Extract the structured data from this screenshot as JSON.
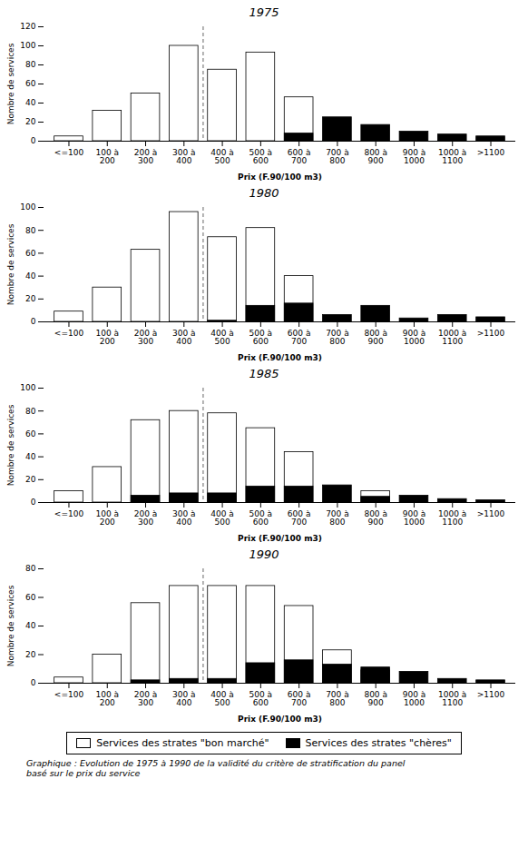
{
  "chart_data": [
    {
      "type": "bar",
      "title": "1975",
      "categories": [
        "<=100",
        "100 à\n200",
        "200 à\n300",
        "300 à\n400",
        "400 à\n500",
        "500 à\n600",
        "600 à\n700",
        "700 à\n800",
        "800 à\n900",
        "900 à\n1000",
        "1000 à\n1100",
        ">1100"
      ],
      "series": [
        {
          "name": "Services des strates \"bon marché\"",
          "color": "#ffffff",
          "values": [
            5,
            32,
            50,
            100,
            75,
            93,
            46,
            0,
            0,
            0,
            0,
            0
          ]
        },
        {
          "name": "Services des strates \"chères\"",
          "color": "#000000",
          "values": [
            0,
            0,
            0,
            0,
            0,
            0,
            8,
            25,
            17,
            10,
            7,
            5
          ]
        }
      ],
      "xlabel": "Prix (F.90/100 m3)",
      "ylabel": "Nombre de services",
      "ylim": [
        0,
        120
      ],
      "yticks": [
        0,
        20,
        40,
        60,
        80,
        100,
        120
      ],
      "dashed_lines": [
        3.5
      ],
      "stacked": false,
      "grid": false
    },
    {
      "type": "bar",
      "title": "1980",
      "categories": [
        "<=100",
        "100 à\n200",
        "200 à\n300",
        "300 à\n400",
        "400 à\n500",
        "500 à\n600",
        "600 à\n700",
        "700 à\n800",
        "800 à\n900",
        "900 à\n1000",
        "1000 à\n1100",
        ">1100"
      ],
      "series": [
        {
          "name": "Services des strates \"bon marché\"",
          "color": "#ffffff",
          "values": [
            9,
            30,
            63,
            96,
            74,
            82,
            40,
            0,
            0,
            0,
            0,
            0
          ]
        },
        {
          "name": "Services des strates \"chères\"",
          "color": "#000000",
          "values": [
            0,
            0,
            0,
            0,
            1,
            14,
            16,
            6,
            14,
            3,
            6,
            4
          ]
        }
      ],
      "xlabel": "Prix (F.90/100 m3)",
      "ylabel": "Nombre de services",
      "ylim": [
        0,
        100
      ],
      "yticks": [
        0,
        20,
        40,
        60,
        80,
        100
      ],
      "dashed_lines": [
        3.5
      ],
      "stacked": false,
      "grid": false
    },
    {
      "type": "bar",
      "title": "1985",
      "categories": [
        "<=100",
        "100 à\n200",
        "200 à\n300",
        "300 à\n400",
        "400 à\n500",
        "500 à\n600",
        "600 à\n700",
        "700 à\n800",
        "800 à\n900",
        "900 à\n1000",
        "1000 à\n1100",
        ">1100"
      ],
      "series": [
        {
          "name": "Services des strates \"bon marché\"",
          "color": "#ffffff",
          "values": [
            10,
            31,
            72,
            80,
            78,
            65,
            44,
            0,
            10,
            0,
            0,
            0
          ]
        },
        {
          "name": "Services des strates \"chères\"",
          "color": "#000000",
          "values": [
            0,
            0,
            6,
            8,
            8,
            14,
            14,
            15,
            5,
            6,
            3,
            2
          ]
        }
      ],
      "xlabel": "Prix (F.90/100 m3)",
      "ylabel": "Nombre de services",
      "ylim": [
        0,
        100
      ],
      "yticks": [
        0,
        20,
        40,
        60,
        80,
        100
      ],
      "dashed_lines": [
        3.5
      ],
      "stacked": false,
      "grid": false
    },
    {
      "type": "bar",
      "title": "1990",
      "categories": [
        "<=100",
        "100 à\n200",
        "200 à\n300",
        "300 à\n400",
        "400 à\n500",
        "500 à\n600",
        "600 à\n700",
        "700 à\n800",
        "800 à\n900",
        "900 à\n1000",
        "1000 à\n1100",
        ">1100"
      ],
      "series": [
        {
          "name": "Services des strates \"bon marché\"",
          "color": "#ffffff",
          "values": [
            4,
            20,
            56,
            68,
            68,
            68,
            54,
            23,
            9,
            0,
            0,
            0
          ]
        },
        {
          "name": "Services des strates \"chères\"",
          "color": "#000000",
          "values": [
            0,
            0,
            2,
            3,
            3,
            14,
            16,
            13,
            11,
            8,
            3,
            2
          ]
        }
      ],
      "xlabel": "Prix (F.90/100 m3)",
      "ylabel": "Nombre de services",
      "ylim": [
        0,
        80
      ],
      "yticks": [
        0,
        20,
        40,
        60,
        80
      ],
      "dashed_lines": [
        3.5
      ],
      "stacked": false,
      "grid": false
    }
  ],
  "legend": "bottom",
  "caption": "Graphique : Evolution de 1975 à 1990 de la validité du critère de stratification du panel\nbasé sur le prix du service"
}
